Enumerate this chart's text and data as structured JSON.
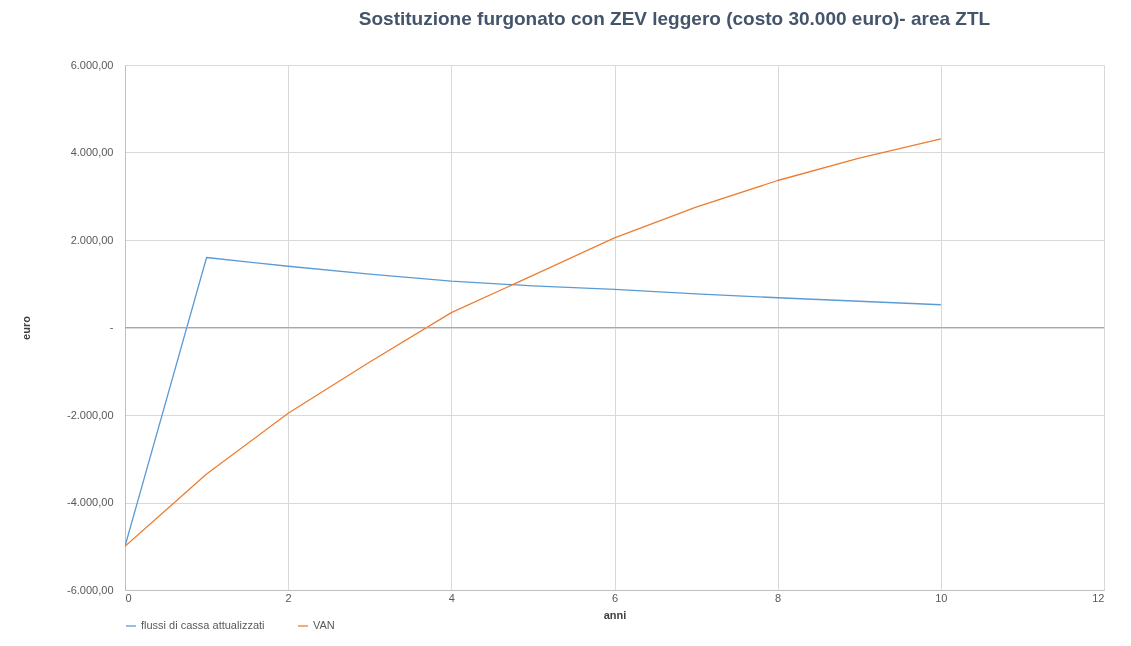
{
  "chart_data": {
    "type": "line",
    "title": "Sostituzione  furgonato  con ZEV leggero  (costo 30.000 euro)- area ZTL",
    "xlabel": "anni",
    "ylabel": "euro",
    "x": [
      0,
      1,
      2,
      3,
      4,
      5,
      6,
      7,
      8,
      9,
      10
    ],
    "series": [
      {
        "name": "flussi di cassa attualizzati",
        "color": "#5b9bd5",
        "values": [
          -5000,
          1600,
          1400,
          1220,
          1060,
          950,
          870,
          770,
          680,
          600,
          520
        ]
      },
      {
        "name": "VAN",
        "color": "#ed7d31",
        "values": [
          -5000,
          -3350,
          -1960,
          -790,
          340,
          1190,
          2050,
          2750,
          3360,
          3870,
          4310
        ]
      }
    ],
    "xlim": [
      0,
      12
    ],
    "xticks": [
      0,
      2,
      4,
      6,
      8,
      10,
      12
    ],
    "ylim": [
      -6000,
      6000
    ],
    "yticks": [
      {
        "value": -6000,
        "label": "-6.000,00"
      },
      {
        "value": -4000,
        "label": "-4.000,00"
      },
      {
        "value": -2000,
        "label": "-2.000,00"
      },
      {
        "value": 0,
        "label": "-"
      },
      {
        "value": 2000,
        "label": "2.000,00"
      },
      {
        "value": 4000,
        "label": "4.000,00"
      },
      {
        "value": 6000,
        "label": "6.000,00"
      }
    ],
    "ref_lines": [
      {
        "axis": "y",
        "value": 0,
        "color": "#8faadc"
      }
    ],
    "grid": true,
    "legend": "bottom",
    "marker": "none",
    "line_style": "solid"
  }
}
